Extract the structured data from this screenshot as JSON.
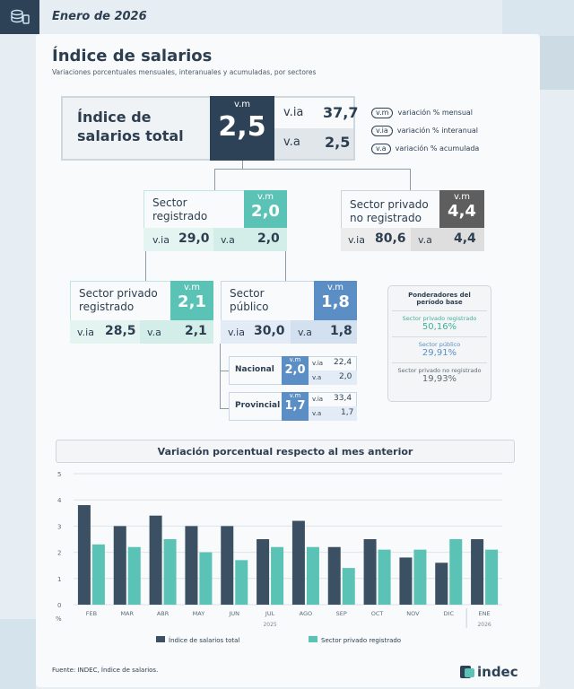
{
  "header": {
    "date": "Enero de 2026"
  },
  "title": "Índice de salarios",
  "subtitle": "Variaciones porcentuales mensuales, interanuales y acumuladas, por sectores",
  "total": {
    "label_line1": "Índice de",
    "label_line2": "salarios total",
    "vm_label": "v.m",
    "vm": "2,5",
    "via_label": "v.ia",
    "via": "37,7",
    "va_label": "v.a",
    "va": "2,5"
  },
  "legend": [
    {
      "abbr": "v.m",
      "text": "variación % mensual"
    },
    {
      "abbr": "v.ia",
      "text": "variación % interanual"
    },
    {
      "abbr": "v.a",
      "text": "variación % acumulada"
    }
  ],
  "registrado": {
    "label_line1": "Sector",
    "label_line2": "registrado",
    "vm_label": "v.m",
    "vm": "2,0",
    "via_label": "v.ia",
    "via": "29,0",
    "va_label": "v.a",
    "va": "2,0",
    "color": "#5bc3b5"
  },
  "no_registrado": {
    "label_line1": "Sector privado",
    "label_line2": "no registrado",
    "vm_label": "v.m",
    "vm": "4,4",
    "via_label": "v.ia",
    "via": "80,6",
    "va_label": "v.a",
    "va": "4,4",
    "color": "#5e5e5e"
  },
  "privado_registrado": {
    "label_line1": "Sector privado",
    "label_line2": "registrado",
    "vm_label": "v.m",
    "vm": "2,1",
    "via_label": "v.ia",
    "via": "28,5",
    "va_label": "v.a",
    "va": "2,1",
    "color": "#5bc3b5"
  },
  "publico": {
    "label_line1": "Sector",
    "label_line2": "público",
    "vm_label": "v.m",
    "vm": "1,8",
    "via_label": "v.ia",
    "via": "30,0",
    "va_label": "v.a",
    "va": "1,8",
    "color": "#5b8ec4"
  },
  "nacional": {
    "label": "Nacional",
    "vm_label": "v.m",
    "vm": "2,0",
    "via_label": "v.ia",
    "via": "22,4",
    "va_label": "v.a",
    "va": "2,0"
  },
  "provincial": {
    "label": "Provincial",
    "vm_label": "v.m",
    "vm": "1,7",
    "via_label": "v.ia",
    "via": "33,4",
    "va_label": "v.a",
    "va": "1,7"
  },
  "ponderadores": {
    "title_line1": "Ponderadores del",
    "title_line2": "período base",
    "items": [
      {
        "label": "Sector privado registrado",
        "value": "50,16%",
        "color": "#3fae9e"
      },
      {
        "label": "Sector público",
        "value": "29,91%",
        "color": "#5b8ec4"
      },
      {
        "label": "Sector privado no registrado",
        "value": "19,93%",
        "color": "#5e6a74"
      }
    ]
  },
  "chart_title": "Variación porcentual respecto al mes anterior",
  "chart_data": {
    "type": "bar",
    "categories": [
      "FEB",
      "MAR",
      "ABR",
      "MAY",
      "JUN",
      "JUL",
      "AGO",
      "SEP",
      "OCT",
      "NOV",
      "DIC",
      "ENE"
    ],
    "year_labels": [
      "2025",
      "2026"
    ],
    "ylim": [
      0,
      5
    ],
    "yticks": [
      "0",
      "1",
      "2",
      "3",
      "4",
      "5"
    ],
    "ylabel": "%",
    "series": [
      {
        "name": "Índice de salarios total",
        "color": "#3c5063",
        "values": [
          3.8,
          3.0,
          3.4,
          3.0,
          3.0,
          2.5,
          3.2,
          2.2,
          2.5,
          1.8,
          1.6,
          2.5
        ]
      },
      {
        "name": "Sector privado registrado",
        "color": "#5bc3b5",
        "values": [
          2.3,
          2.2,
          2.5,
          2.0,
          1.7,
          2.2,
          2.2,
          1.4,
          2.1,
          2.1,
          2.5,
          2.1
        ]
      }
    ],
    "legend_position": "bottom",
    "grid": true
  },
  "source": "Fuente: INDEC, Índice de salarios.",
  "brand": "indec"
}
